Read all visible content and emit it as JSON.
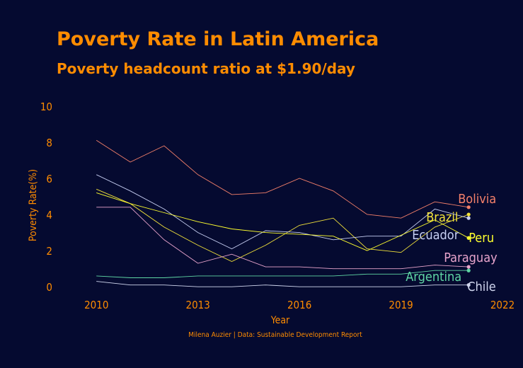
{
  "chart_data": {
    "type": "line",
    "title": "Poverty Rate in Latin America",
    "subtitle": "Poverty headcount ratio at $1.90/day",
    "xlabel": "Year",
    "ylabel": "Poverty Rate(%)",
    "caption": "Milena Auzier | Data: Sustainable Development Report",
    "xlim": [
      2009.2,
      2022
    ],
    "ylim": [
      -0.5,
      10.5
    ],
    "x_ticks": [
      "2010",
      "2013",
      "2016",
      "2019",
      "2022"
    ],
    "y_ticks": [
      "0",
      "2",
      "4",
      "6",
      "8",
      "10"
    ],
    "grid": false,
    "legend": "direct labels at line ends",
    "x": [
      2010,
      2011,
      2012,
      2013,
      2014,
      2015,
      2016,
      2017,
      2018,
      2019,
      2020,
      2021
    ],
    "series": [
      {
        "name": "Bolivia",
        "color": "#f4806a",
        "values": [
          8.1,
          6.9,
          7.8,
          6.2,
          5.1,
          5.2,
          6.0,
          5.3,
          4.0,
          3.8,
          4.7,
          4.4
        ]
      },
      {
        "name": "Brazil",
        "color": "#f2e23a",
        "values": [
          5.4,
          4.6,
          3.3,
          2.3,
          1.4,
          2.3,
          3.4,
          3.8,
          2.1,
          1.9,
          3.3,
          4.0
        ]
      },
      {
        "name": "Ecuador",
        "color": "#c7cff2",
        "values": [
          6.2,
          5.3,
          4.3,
          3.0,
          2.1,
          3.1,
          3.0,
          2.6,
          2.8,
          2.8,
          4.3,
          3.8
        ]
      },
      {
        "name": "Peru",
        "color": "#ffff2e",
        "values": [
          5.2,
          4.6,
          4.1,
          3.6,
          3.2,
          3.0,
          2.9,
          2.8,
          2.0,
          null,
          3.7,
          2.7
        ]
      },
      {
        "name": "Paraguay",
        "color": "#e8a4cc",
        "values": [
          4.4,
          4.4,
          2.6,
          1.3,
          1.8,
          1.1,
          1.1,
          1.0,
          1.0,
          1.0,
          1.2,
          1.1
        ]
      },
      {
        "name": "Argentina",
        "color": "#5fd6a4",
        "values": [
          0.6,
          0.5,
          0.5,
          0.6,
          0.6,
          0.6,
          0.6,
          0.6,
          0.7,
          0.7,
          0.9,
          0.9
        ]
      },
      {
        "name": "Chile",
        "color": "#d0d6ee",
        "values": [
          0.3,
          0.1,
          0.1,
          0.0,
          0.0,
          0.1,
          0.0,
          0.0,
          0.0,
          0.0,
          0.1,
          0.1
        ]
      }
    ]
  },
  "colors": {
    "background": "#050a30",
    "accent": "#ff8c00"
  }
}
